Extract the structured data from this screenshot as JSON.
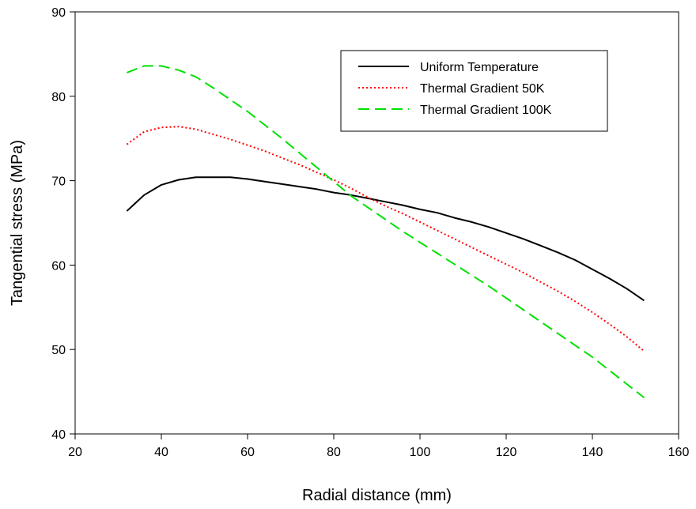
{
  "chart_data": {
    "type": "line",
    "title": "",
    "xlabel": "Radial distance (mm)",
    "ylabel": "Tangential stress (MPa)",
    "xlim": [
      20,
      160
    ],
    "ylim": [
      40,
      90
    ],
    "xticks": [
      20,
      40,
      60,
      80,
      100,
      120,
      140,
      160
    ],
    "yticks": [
      40,
      50,
      60,
      70,
      80,
      90
    ],
    "grid": false,
    "legend_position": "top-right",
    "series": [
      {
        "name": "Uniform Temperature",
        "color": "#000000",
        "dash": "solid",
        "x": [
          32,
          36,
          40,
          44,
          48,
          52,
          56,
          60,
          64,
          68,
          72,
          76,
          80,
          84,
          88,
          92,
          96,
          100,
          104,
          108,
          112,
          116,
          120,
          124,
          128,
          132,
          136,
          140,
          144,
          148,
          152
        ],
        "y": [
          66.4,
          68.3,
          69.5,
          70.1,
          70.4,
          70.4,
          70.4,
          70.2,
          69.9,
          69.6,
          69.3,
          69.0,
          68.6,
          68.3,
          67.9,
          67.5,
          67.1,
          66.6,
          66.2,
          65.6,
          65.1,
          64.5,
          63.8,
          63.1,
          62.3,
          61.5,
          60.6,
          59.5,
          58.4,
          57.2,
          55.8
        ]
      },
      {
        "name": "Thermal Gradient 50K",
        "color": "#ff0000",
        "dash": "dotted",
        "x": [
          32,
          36,
          40,
          44,
          48,
          52,
          56,
          60,
          64,
          68,
          72,
          76,
          80,
          84,
          88,
          92,
          96,
          100,
          104,
          108,
          112,
          116,
          120,
          124,
          128,
          132,
          136,
          140,
          144,
          148,
          152
        ],
        "y": [
          74.3,
          75.8,
          76.3,
          76.4,
          76.1,
          75.5,
          74.9,
          74.2,
          73.5,
          72.7,
          71.9,
          71.0,
          70.1,
          69.1,
          68.0,
          67.0,
          66.1,
          65.1,
          64.1,
          63.1,
          62.1,
          61.1,
          60.1,
          59.1,
          58.0,
          56.9,
          55.7,
          54.4,
          53.0,
          51.5,
          49.8
        ]
      },
      {
        "name": "Thermal Gradient 100K",
        "color": "#00e000",
        "dash": "dashed",
        "x": [
          32,
          36,
          40,
          44,
          48,
          52,
          56,
          60,
          64,
          68,
          72,
          76,
          80,
          84,
          88,
          92,
          96,
          100,
          104,
          108,
          112,
          116,
          120,
          124,
          128,
          132,
          136,
          140,
          144,
          148,
          152
        ],
        "y": [
          82.8,
          83.6,
          83.6,
          83.1,
          82.3,
          81.0,
          79.6,
          78.2,
          76.6,
          75.0,
          73.3,
          71.6,
          69.9,
          68.2,
          66.8,
          65.4,
          64.0,
          62.7,
          61.4,
          60.1,
          58.8,
          57.5,
          56.1,
          54.7,
          53.3,
          51.9,
          50.5,
          49.1,
          47.5,
          45.9,
          44.3
        ]
      }
    ]
  }
}
